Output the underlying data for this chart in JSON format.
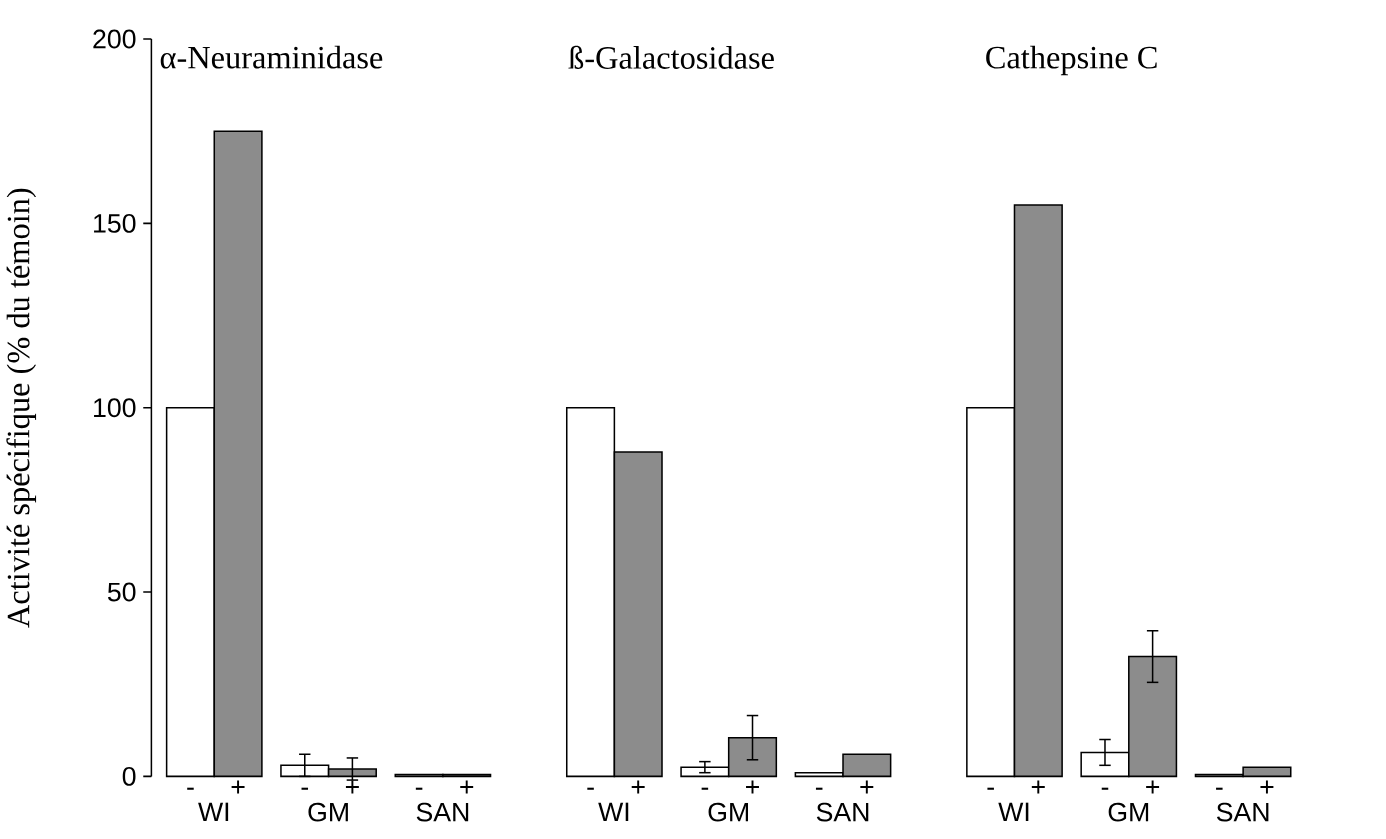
{
  "chart_data": {
    "type": "bar",
    "ylabel": "Activité spécifique (% du témoin)",
    "categories": [
      "WI",
      "GM",
      "SAN",
      "WI",
      "GM",
      "SAN",
      "WI",
      "GM",
      "SAN"
    ],
    "series": [
      {
        "name": "-",
        "color": "#ffffff",
        "values": [
          100,
          3,
          0.5,
          100,
          2.5,
          1,
          100,
          6.5,
          0.5
        ],
        "errors": [
          null,
          3,
          null,
          null,
          1.5,
          null,
          null,
          3.5,
          null
        ]
      },
      {
        "name": "+",
        "color": "#8c8c8c",
        "values": [
          175,
          2,
          0.5,
          88,
          10.5,
          6,
          155,
          32.5,
          2.5
        ],
        "errors": [
          null,
          3,
          null,
          null,
          6,
          null,
          null,
          7,
          null
        ]
      }
    ],
    "annotations": [
      "α-Neuraminidase",
      "ß-Galactosidase",
      "Cathepsine C"
    ],
    "ylim": [
      0,
      200
    ],
    "yticks": [
      0,
      50,
      100,
      150,
      200
    ],
    "grid": false
  }
}
